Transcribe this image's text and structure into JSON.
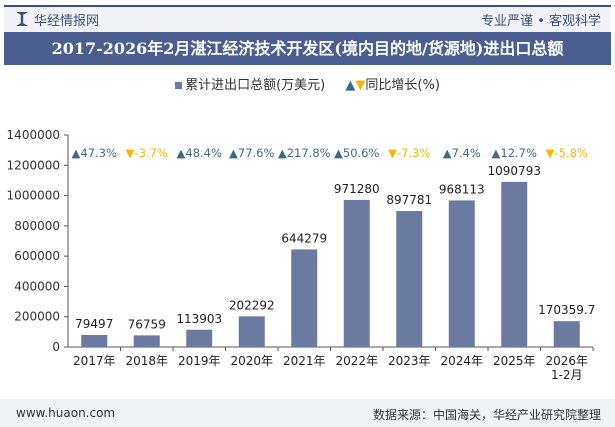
{
  "header": {
    "brand": "华经情报网",
    "slogan": "专业严谨 • 客观科学"
  },
  "footer": {
    "site": "www.huaon.com",
    "source": "数据来源：中国海关，华经产业研究院整理"
  },
  "colors": {
    "bar": "#6b7aa0",
    "up": "#3d6a86",
    "down": "#f5b800",
    "title_bg": "#4a5f8f"
  },
  "chart_data": {
    "type": "bar",
    "title": "2017-2026年2月湛江经济技术开发区(境内目的地/货源地)进出口总额",
    "legend": {
      "bar": "累计进出口总额(万美元)",
      "growth": "同比增长(%)",
      "placement": "top"
    },
    "categories": [
      "2017年",
      "2018年",
      "2019年",
      "2020年",
      "2021年",
      "2022年",
      "2023年",
      "2024年",
      "2025年",
      "2026年\n1-2月"
    ],
    "series": [
      {
        "name": "累计进出口总额(万美元)",
        "values": [
          79497,
          76759,
          113903,
          202292,
          644279,
          971280,
          897781,
          968113,
          1090793,
          170359.7
        ],
        "labels": [
          "79497",
          "76759",
          "113903",
          "202292",
          "644279",
          "971280",
          "897781",
          "968113",
          "1090793",
          "170359.7"
        ]
      },
      {
        "name": "同比增长(%)",
        "values": [
          47.3,
          -3.7,
          48.4,
          77.6,
          217.8,
          50.6,
          -7.3,
          7.4,
          12.7,
          -5.8
        ],
        "labels": [
          "47.3%",
          "-3.7%",
          "48.4%",
          "77.6%",
          "217.8%",
          "50.6%",
          "-7.3%",
          "7.4%",
          "12.7%",
          "-5.8%"
        ]
      }
    ],
    "yticks": [
      "0",
      "200000",
      "400000",
      "600000",
      "800000",
      "1000000",
      "1200000",
      "1400000"
    ],
    "ylim": [
      0,
      1400000
    ],
    "grid": false
  }
}
